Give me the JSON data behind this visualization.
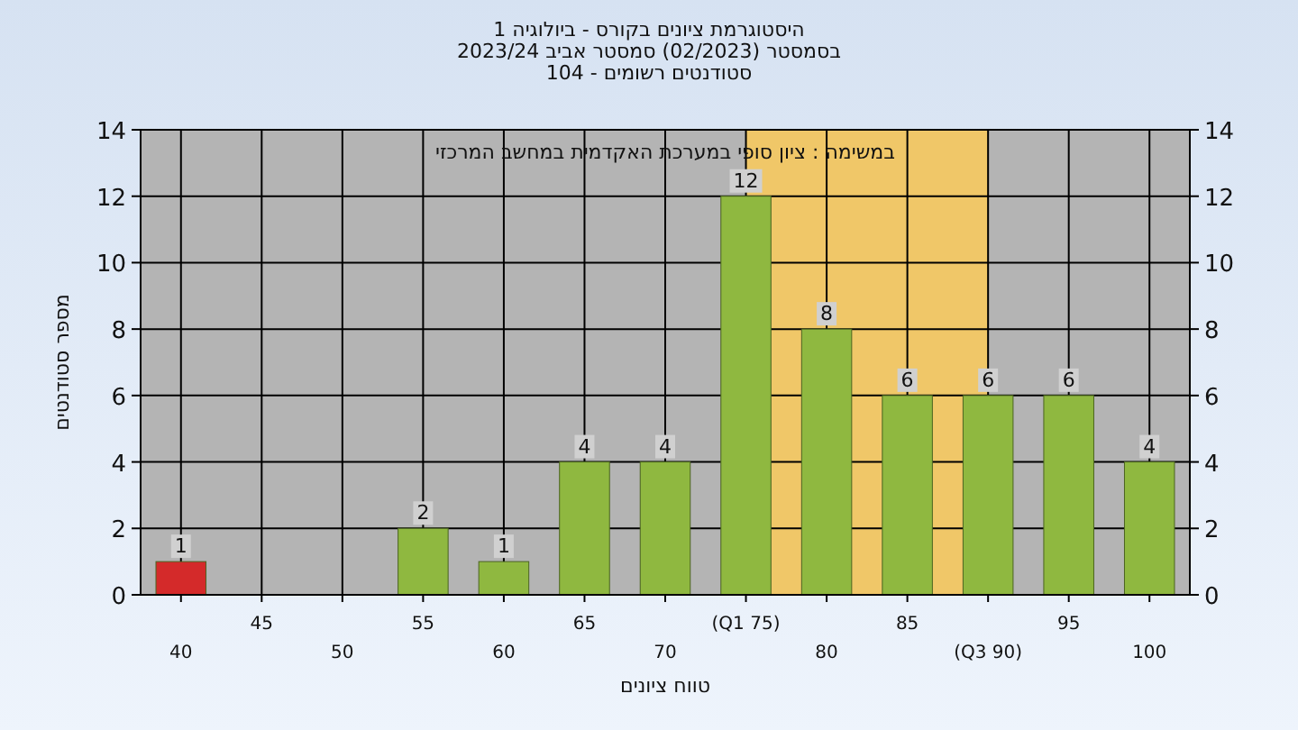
{
  "chart_data": {
    "type": "bar",
    "title": "היסטוגרמת ציונים בקורס - ביולוגיה 1",
    "subtitle": "בסמסטר  (02/2023)  סמסטר אביב 2023/24\nסטודנטים רשומים - 104",
    "xlabel": "טווח ציונים",
    "ylabel": "מספר סטודנטים",
    "annotations": [
      "במשימה : ציון סופי במערכת האקדמית במחשב המרכזי"
    ],
    "categories": [
      "40",
      "45",
      "50",
      "55",
      "60",
      "65",
      "70",
      "(Q1 75)",
      "80",
      "85",
      "(Q3 90)",
      "95",
      "100"
    ],
    "values": [
      1,
      0,
      0,
      2,
      1,
      4,
      4,
      12,
      8,
      6,
      6,
      6,
      4
    ],
    "colors": [
      "#d42a2a",
      "#8fb840",
      "#8fb840",
      "#8fb840",
      "#8fb840",
      "#8fb840",
      "#8fb840",
      "#8fb840",
      "#8fb840",
      "#8fb840",
      "#8fb840",
      "#8fb840",
      "#8fb840"
    ],
    "value_labels": [
      "1",
      null,
      null,
      "2",
      "1",
      "4",
      "4",
      "12",
      "8",
      "6",
      "6",
      "6",
      "4"
    ],
    "ylim": [
      0,
      14
    ],
    "yticks": [
      0,
      2,
      4,
      6,
      8,
      10,
      12,
      14
    ],
    "y2lim": [
      0,
      14
    ],
    "y2ticks": [
      0,
      2,
      4,
      6,
      8,
      10,
      12,
      14
    ],
    "grid": true,
    "bands": [
      {
        "axis": "x",
        "from": "(Q1 75)",
        "to": "(Q3 90)",
        "color": "#ffcc55"
      }
    ]
  }
}
